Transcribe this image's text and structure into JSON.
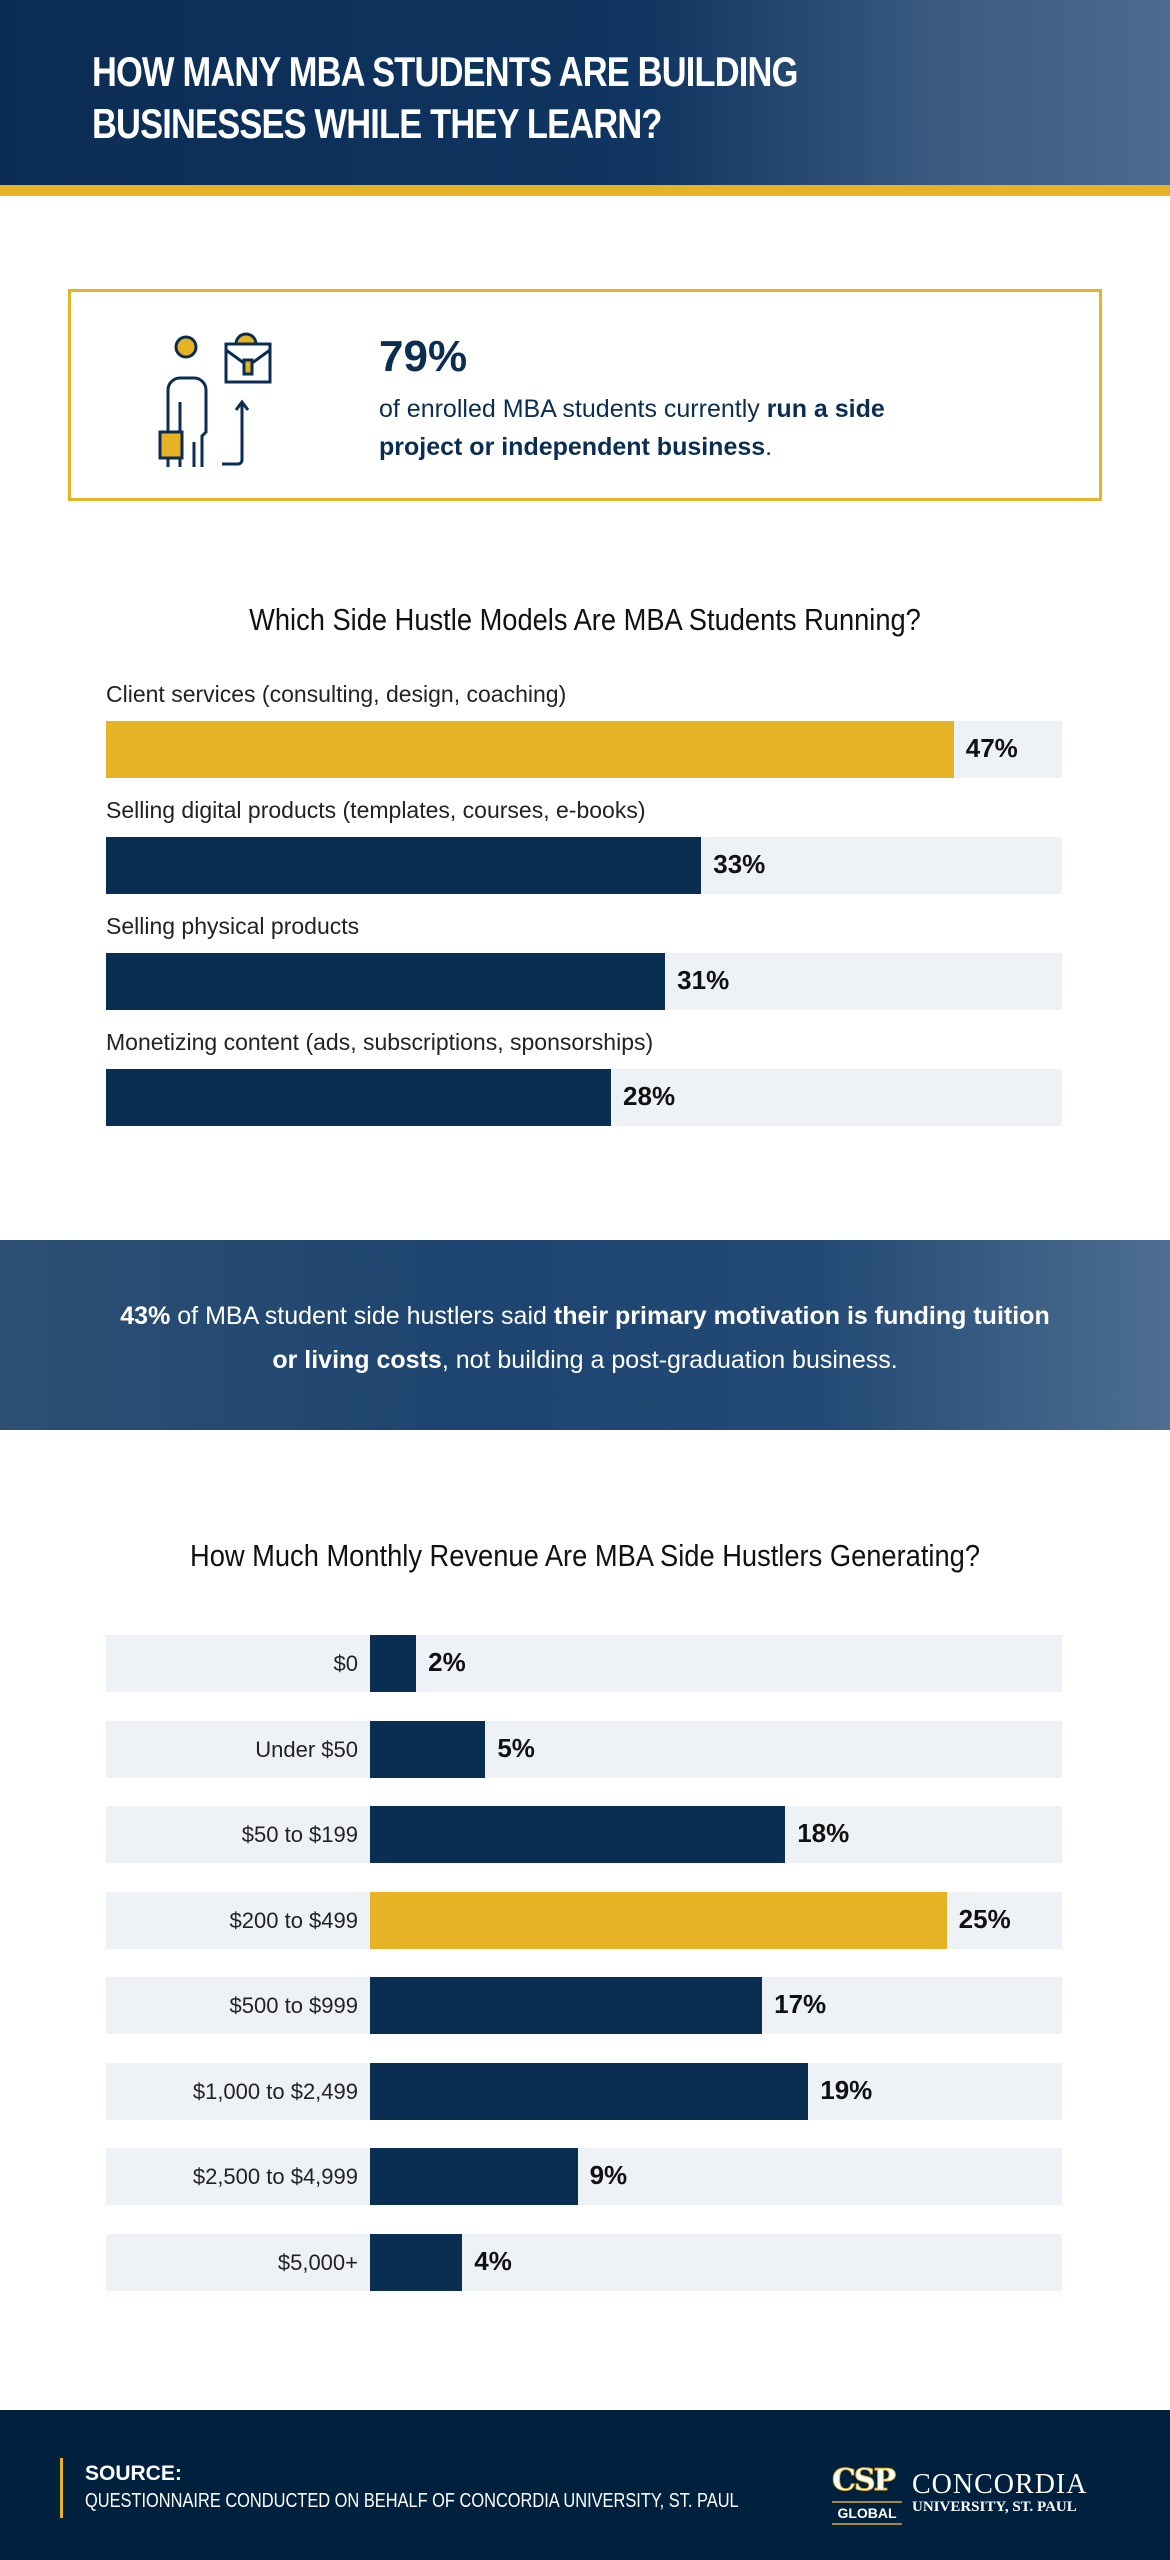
{
  "header": {
    "title_line1": "HOW MANY MBA STUDENTS ARE BUILDING",
    "title_line2": "BUSINESSES WHILE THEY LEARN?"
  },
  "stat": {
    "value": "79%",
    "text_pre": "of enrolled MBA students currently ",
    "text_bold": "run a side project or independent business",
    "text_post": "."
  },
  "banner": {
    "bold1": "43%",
    "text1": " of MBA student side hustlers said ",
    "bold2": "their primary motivation is funding tuition or living costs",
    "text2": ", not building a post-graduation business."
  },
  "colors": {
    "navy": "#0a2d52",
    "gold": "#e6b325",
    "track": "#eef2f6"
  },
  "chart_data": [
    {
      "type": "bar",
      "orientation": "horizontal",
      "title": "Which Side Hustle Models Are MBA Students Running?",
      "categories": [
        "Client services (consulting, design, coaching)",
        "Selling digital products (templates, courses, e-books)",
        "Selling physical products",
        "Monetizing content (ads, subscriptions, sponsorships)"
      ],
      "values": [
        47,
        33,
        31,
        28
      ],
      "value_labels": [
        "47%",
        "33%",
        "31%",
        "28%"
      ],
      "highlight_index": 0,
      "xlim": [
        0,
        53
      ]
    },
    {
      "type": "bar",
      "orientation": "horizontal",
      "title": "How Much Monthly Revenue Are MBA Side Hustlers Generating?",
      "categories": [
        "$0",
        "Under $50",
        "$50 to $199",
        "$200 to $499",
        "$500 to $999",
        "$1,000 to $2,499",
        "$2,500 to $4,999",
        "$5,000+"
      ],
      "values": [
        2,
        5,
        18,
        25,
        17,
        19,
        9,
        4
      ],
      "value_labels": [
        "2%",
        "5%",
        "18%",
        "25%",
        "17%",
        "19%",
        "9%",
        "4%"
      ],
      "highlight_index": 3,
      "xlim": [
        0,
        30
      ]
    }
  ],
  "footer": {
    "source_label": "SOURCE:",
    "source_text": "QUESTIONNAIRE CONDUCTED ON BEHALF OF CONCORDIA UNIVERSITY, ST. PAUL",
    "logo_csp": "CSP",
    "logo_global": "GLOBAL",
    "logo_name": "CONCORDIA",
    "logo_sub": "UNIVERSITY, ST. PAUL"
  }
}
